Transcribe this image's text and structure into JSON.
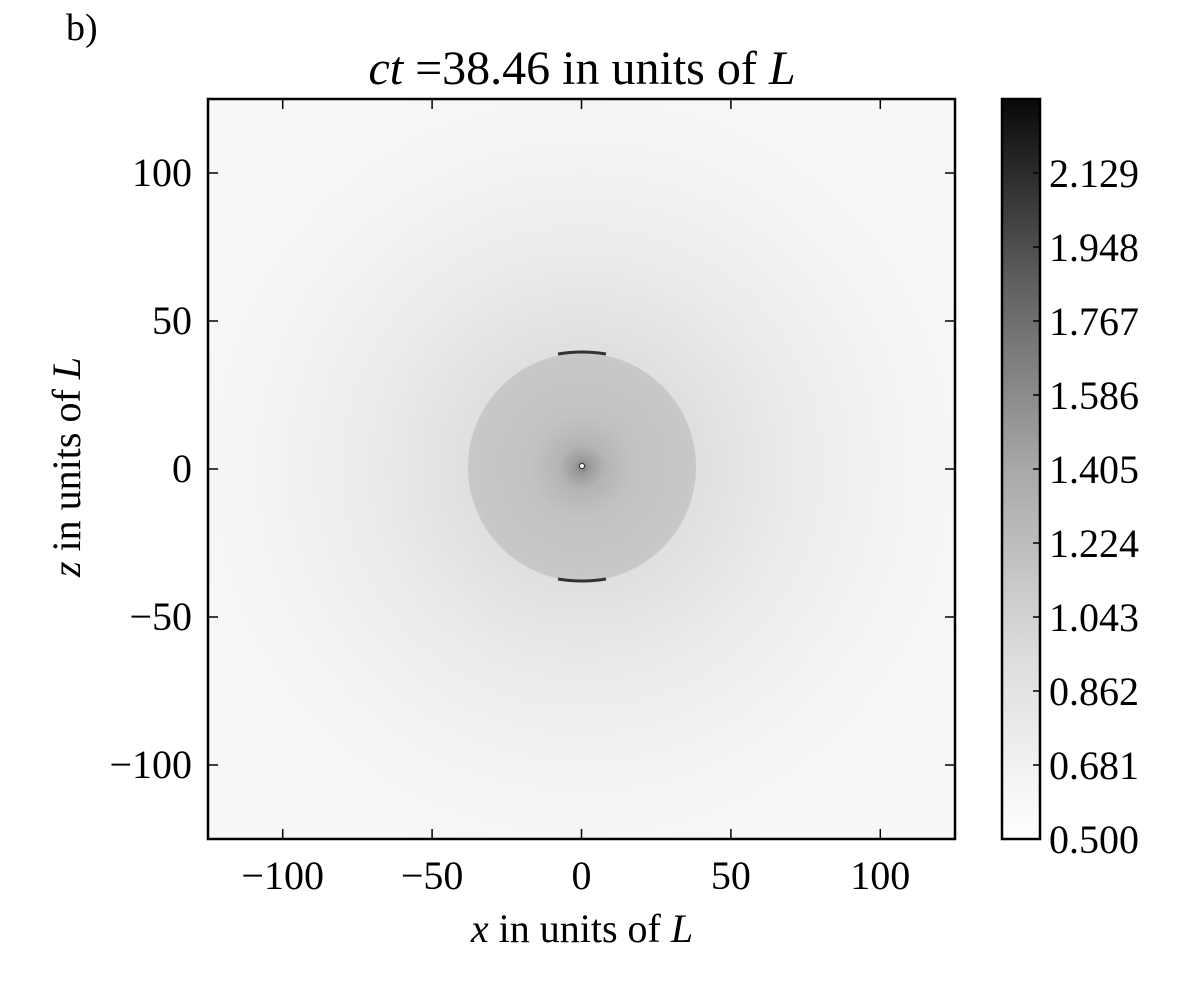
{
  "panel_label": "b)",
  "chart_data": {
    "type": "heatmap",
    "title": {
      "prefix_italic": "ct",
      "middle": " =38.46 in units of ",
      "suffix_italic": "L"
    },
    "xlabel": {
      "italic": "x",
      "text": " in units of ",
      "italic_end": "L"
    },
    "ylabel": {
      "italic": "z",
      "text": " in units of ",
      "italic_end": "L"
    },
    "xlim": [
      -125,
      125
    ],
    "ylim": [
      -125,
      125
    ],
    "x_ticks": [
      -100,
      -50,
      0,
      50,
      100
    ],
    "x_tick_labels": [
      "−100",
      "−50",
      "0",
      "50",
      "100"
    ],
    "y_ticks": [
      100,
      50,
      0,
      -50,
      -100
    ],
    "y_tick_labels": [
      "100",
      "50",
      "0",
      "−50",
      "−100"
    ],
    "colormap": "gray_r",
    "colorbar": {
      "range": [
        0.5,
        2.31
      ],
      "ticks": [
        2.129,
        1.948,
        1.767,
        1.586,
        1.405,
        1.224,
        1.043,
        0.862,
        0.681,
        0.5
      ],
      "tick_labels": [
        "2.129",
        "1.948",
        "1.767",
        "1.586",
        "1.405",
        "1.224",
        "1.043",
        "0.862",
        "0.681",
        "0.500"
      ]
    },
    "features": {
      "sphere_radius": 38,
      "center": [
        0,
        0
      ],
      "sphere_value_approx": 1.05,
      "background_value_near_sphere": 0.8,
      "background_value_far": 0.52,
      "polar_edge_max": 2.31
    }
  }
}
